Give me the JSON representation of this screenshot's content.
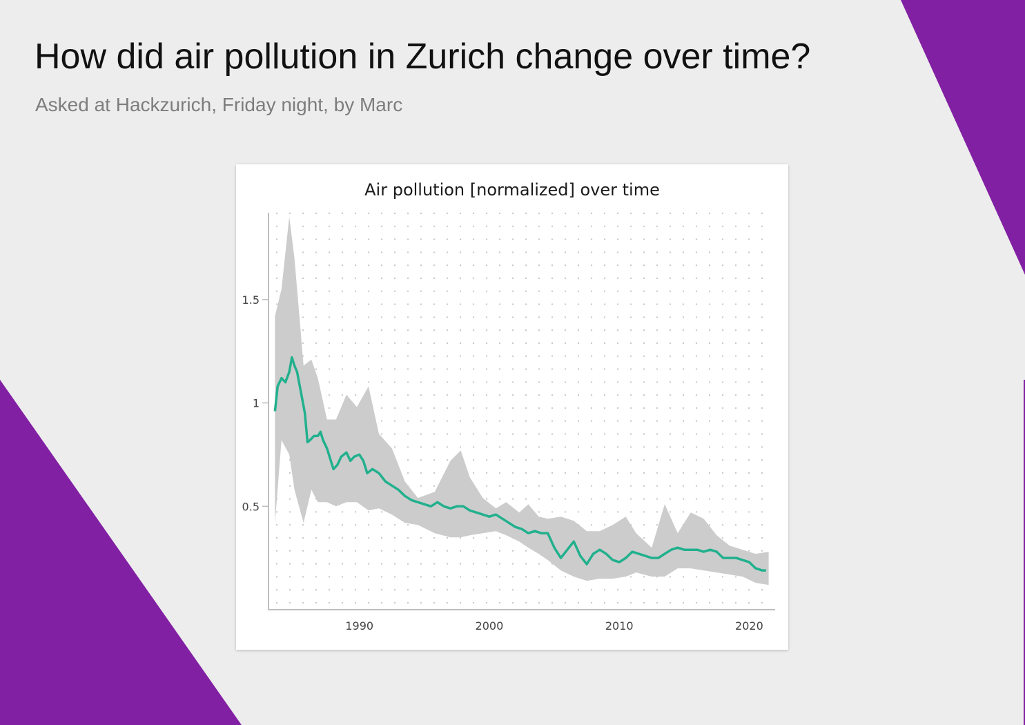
{
  "header": {
    "title": "How did air pollution in Zurich change over time?",
    "subtitle": "Asked at Hackzurich, Friday night, by Marc"
  },
  "colors": {
    "background": "#ededed",
    "accent_purple": "#8220a3",
    "line": "#21b08d",
    "band": "#cccccc",
    "grid_dots": "#c8c8c8"
  },
  "chart_data": {
    "type": "line",
    "title": "Air pollution [normalized] over time",
    "xlabel": "",
    "ylabel": "",
    "xlim": [
      1983.0,
      2022.0
    ],
    "ylim": [
      0.0,
      1.92
    ],
    "x_ticks": [
      {
        "value": 1990,
        "label": "1990"
      },
      {
        "value": 2000,
        "label": "2000"
      },
      {
        "value": 2010,
        "label": "2010"
      },
      {
        "value": 2020,
        "label": "2020"
      }
    ],
    "y_ticks": [
      {
        "value": 0.5,
        "label": "0.5"
      },
      {
        "value": 1.0,
        "label": "1"
      },
      {
        "value": 1.5,
        "label": "1.5"
      }
    ],
    "grid": "dotted",
    "series": [
      {
        "kind": "line",
        "x": [
          1983.5,
          1983.7,
          1984.0,
          1984.3,
          1984.6,
          1984.8,
          1985.0,
          1985.2,
          1985.5,
          1985.8,
          1986.0,
          1986.2,
          1986.5,
          1986.8,
          1987.0,
          1987.2,
          1987.5,
          1987.8,
          1988.0,
          1988.3,
          1988.6,
          1989.0,
          1989.3,
          1989.6,
          1990.0,
          1990.3,
          1990.6,
          1991.0,
          1991.5,
          1992.0,
          1992.5,
          1993.0,
          1993.5,
          1994.0,
          1994.5,
          1995.0,
          1995.5,
          1996.0,
          1996.5,
          1997.0,
          1997.5,
          1998.0,
          1998.5,
          1999.0,
          1999.5,
          2000.0,
          2000.5,
          2001.0,
          2001.5,
          2002.0,
          2002.5,
          2003.0,
          2003.5,
          2004.0,
          2004.5,
          2005.0,
          2005.5,
          2006.0,
          2006.5,
          2007.0,
          2007.5,
          2008.0,
          2008.5,
          2009.0,
          2009.5,
          2010.0,
          2010.5,
          2011.0,
          2011.5,
          2012.0,
          2012.5,
          2013.0,
          2013.5,
          2014.0,
          2014.5,
          2015.0,
          2015.5,
          2016.0,
          2016.5,
          2017.0,
          2017.5,
          2018.0,
          2018.5,
          2019.0,
          2019.5,
          2020.0,
          2020.5,
          2021.0,
          2021.3
        ],
        "y": [
          0.96,
          1.08,
          1.12,
          1.1,
          1.15,
          1.22,
          1.18,
          1.15,
          1.05,
          0.95,
          0.81,
          0.82,
          0.84,
          0.84,
          0.86,
          0.82,
          0.78,
          0.72,
          0.68,
          0.7,
          0.74,
          0.76,
          0.72,
          0.74,
          0.75,
          0.72,
          0.66,
          0.68,
          0.66,
          0.62,
          0.6,
          0.58,
          0.55,
          0.53,
          0.52,
          0.51,
          0.5,
          0.52,
          0.5,
          0.49,
          0.5,
          0.5,
          0.48,
          0.47,
          0.46,
          0.45,
          0.46,
          0.44,
          0.42,
          0.4,
          0.39,
          0.37,
          0.38,
          0.37,
          0.37,
          0.3,
          0.25,
          0.29,
          0.33,
          0.26,
          0.22,
          0.27,
          0.29,
          0.27,
          0.24,
          0.23,
          0.25,
          0.28,
          0.27,
          0.26,
          0.25,
          0.25,
          0.27,
          0.29,
          0.3,
          0.29,
          0.29,
          0.29,
          0.28,
          0.29,
          0.28,
          0.25,
          0.25,
          0.25,
          0.24,
          0.23,
          0.2,
          0.19,
          0.19
        ]
      },
      {
        "kind": "band",
        "x": [
          1983.5,
          1984.0,
          1984.6,
          1985.0,
          1985.7,
          1986.3,
          1986.8,
          1987.5,
          1988.2,
          1989.0,
          1989.8,
          1990.7,
          1991.5,
          1992.5,
          1993.5,
          1994.5,
          1995.8,
          1997.0,
          1997.8,
          1998.5,
          1999.5,
          2000.5,
          2001.3,
          2002.3,
          2003.0,
          2003.8,
          2004.5,
          2005.5,
          2006.5,
          2007.5,
          2008.5,
          2009.5,
          2010.5,
          2011.3,
          2012.5,
          2013.5,
          2014.5,
          2015.5,
          2016.5,
          2017.5,
          2018.5,
          2019.5,
          2020.5,
          2021.5
        ],
        "upper": [
          1.42,
          1.55,
          1.9,
          1.7,
          1.18,
          1.21,
          1.12,
          0.92,
          0.92,
          1.04,
          0.98,
          1.08,
          0.85,
          0.78,
          0.62,
          0.54,
          0.57,
          0.72,
          0.77,
          0.64,
          0.54,
          0.49,
          0.52,
          0.47,
          0.51,
          0.45,
          0.44,
          0.45,
          0.43,
          0.38,
          0.38,
          0.41,
          0.45,
          0.37,
          0.3,
          0.51,
          0.37,
          0.47,
          0.44,
          0.36,
          0.31,
          0.29,
          0.27,
          0.28
        ],
        "lower": [
          0.42,
          0.82,
          0.75,
          0.58,
          0.42,
          0.58,
          0.52,
          0.52,
          0.5,
          0.52,
          0.52,
          0.48,
          0.49,
          0.46,
          0.42,
          0.41,
          0.37,
          0.35,
          0.35,
          0.36,
          0.37,
          0.38,
          0.36,
          0.33,
          0.3,
          0.27,
          0.24,
          0.19,
          0.16,
          0.14,
          0.15,
          0.15,
          0.16,
          0.18,
          0.16,
          0.16,
          0.2,
          0.2,
          0.19,
          0.18,
          0.17,
          0.16,
          0.13,
          0.12
        ]
      }
    ]
  }
}
